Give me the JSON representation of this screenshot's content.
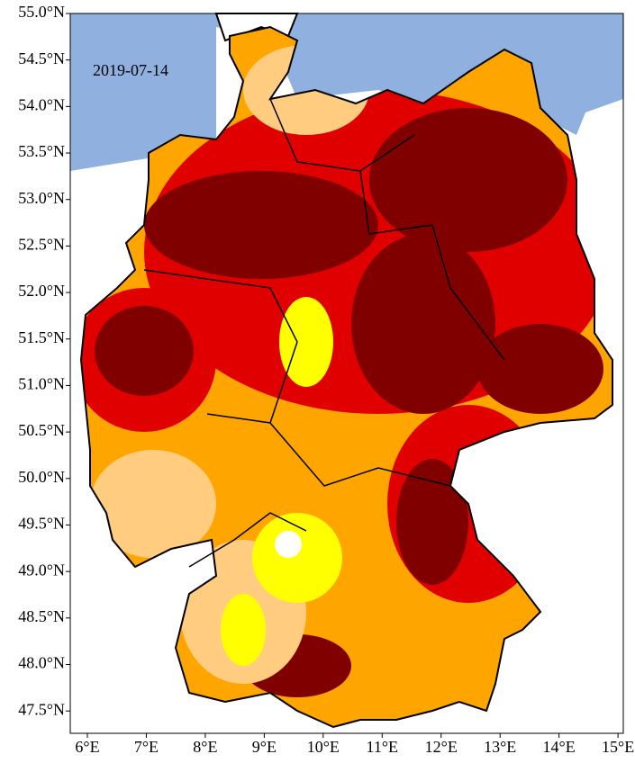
{
  "map": {
    "annotation": "2019-07-14",
    "xlim": [
      5.71,
      15.09
    ],
    "ylim": [
      47.26,
      55.0
    ],
    "xticks": [
      {
        "value": 6,
        "label": "6°E"
      },
      {
        "value": 7,
        "label": "7°E"
      },
      {
        "value": 8,
        "label": "8°E"
      },
      {
        "value": 9,
        "label": "9°E"
      },
      {
        "value": 10,
        "label": "10°E"
      },
      {
        "value": 11,
        "label": "11°E"
      },
      {
        "value": 12,
        "label": "12°E"
      },
      {
        "value": 13,
        "label": "13°E"
      },
      {
        "value": 14,
        "label": "14°E"
      },
      {
        "value": 15,
        "label": "15°E"
      }
    ],
    "yticks": [
      {
        "value": 47.5,
        "label": "47.5°N"
      },
      {
        "value": 48.0,
        "label": "48.0°N"
      },
      {
        "value": 48.5,
        "label": "48.5°N"
      },
      {
        "value": 49.0,
        "label": "49.0°N"
      },
      {
        "value": 49.5,
        "label": "49.5°N"
      },
      {
        "value": 50.0,
        "label": "50.0°N"
      },
      {
        "value": 50.5,
        "label": "50.5°N"
      },
      {
        "value": 51.0,
        "label": "51.0°N"
      },
      {
        "value": 51.5,
        "label": "51.5°N"
      },
      {
        "value": 52.0,
        "label": "52.0°N"
      },
      {
        "value": 52.5,
        "label": "52.5°N"
      },
      {
        "value": 53.0,
        "label": "53.0°N"
      },
      {
        "value": 53.5,
        "label": "53.5°N"
      },
      {
        "value": 54.0,
        "label": "54.0°N"
      },
      {
        "value": 54.5,
        "label": "54.5°N"
      },
      {
        "value": 55.0,
        "label": "55.0°N"
      }
    ]
  }
}
